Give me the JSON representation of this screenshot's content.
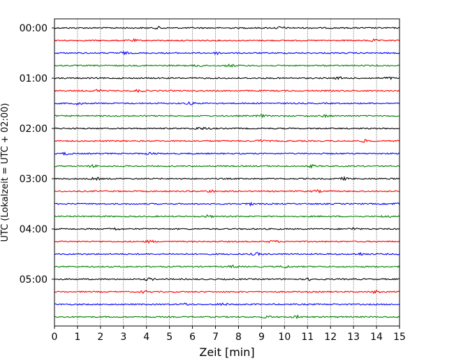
{
  "chart_data": {
    "type": "line",
    "title": "",
    "xlabel": "Zeit  [min]",
    "ylabel": "UTC (Lokalzeit = UTC + 02:00)",
    "xlim": [
      0,
      15
    ],
    "xticks": [
      0,
      1,
      2,
      3,
      4,
      5,
      6,
      7,
      8,
      9,
      10,
      11,
      12,
      13,
      14,
      15
    ],
    "x_grid": true,
    "y_grid": false,
    "legend": "none",
    "trace_interval_min": 15,
    "trace_colors": [
      "#000000",
      "#ff0000",
      "#0000ff",
      "#008000"
    ],
    "y_tick_labels": [
      "00:00",
      "01:00",
      "02:00",
      "03:00",
      "04:00",
      "05:00"
    ],
    "traces": [
      {
        "start": "00:00",
        "color": "#000000"
      },
      {
        "start": "00:15",
        "color": "#ff0000"
      },
      {
        "start": "00:30",
        "color": "#0000ff"
      },
      {
        "start": "00:45",
        "color": "#008000"
      },
      {
        "start": "01:00",
        "color": "#000000"
      },
      {
        "start": "01:15",
        "color": "#ff0000"
      },
      {
        "start": "01:30",
        "color": "#0000ff"
      },
      {
        "start": "01:45",
        "color": "#008000"
      },
      {
        "start": "02:00",
        "color": "#000000"
      },
      {
        "start": "02:15",
        "color": "#ff0000"
      },
      {
        "start": "02:30",
        "color": "#0000ff"
      },
      {
        "start": "02:45",
        "color": "#008000"
      },
      {
        "start": "03:00",
        "color": "#000000"
      },
      {
        "start": "03:15",
        "color": "#ff0000"
      },
      {
        "start": "03:30",
        "color": "#0000ff"
      },
      {
        "start": "03:45",
        "color": "#008000"
      },
      {
        "start": "04:00",
        "color": "#000000"
      },
      {
        "start": "04:15",
        "color": "#ff0000"
      },
      {
        "start": "04:30",
        "color": "#0000ff"
      },
      {
        "start": "04:45",
        "color": "#008000"
      },
      {
        "start": "05:00",
        "color": "#000000"
      },
      {
        "start": "05:15",
        "color": "#ff0000"
      },
      {
        "start": "05:30",
        "color": "#0000ff"
      },
      {
        "start": "05:45",
        "color": "#008000"
      }
    ]
  }
}
